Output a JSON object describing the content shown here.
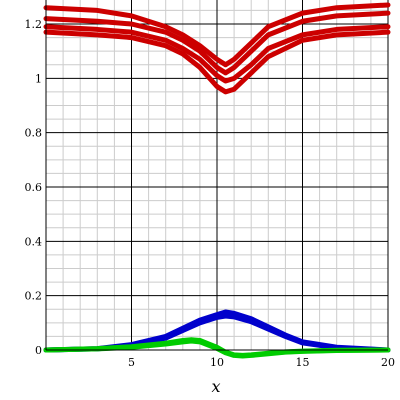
{
  "chart_data": {
    "type": "line",
    "title": "",
    "xlabel": "x",
    "ylabel": "",
    "xlim": [
      0,
      20
    ],
    "ylim": [
      0,
      1.3
    ],
    "xticks": [
      5,
      10,
      15,
      20
    ],
    "yticks": [
      0,
      0.2,
      0.4,
      0.6,
      0.8,
      1,
      1.2
    ],
    "xtick_labels": [
      "5",
      "10",
      "15",
      "20"
    ],
    "ytick_labels": [
      "0",
      "0.2",
      "0.4",
      "0.6",
      "0.8",
      "1",
      "1.2"
    ],
    "grid": true,
    "colors": {
      "red": "#cc0000",
      "blue": "#0000cc",
      "green": "#00cc00",
      "grid_major": "#000000",
      "grid_minor": "#cccccc"
    },
    "series": [
      {
        "group": "red",
        "x": [
          0,
          3,
          5,
          7,
          8,
          9,
          10,
          10.5,
          11,
          12,
          13,
          15,
          17,
          20
        ],
        "values": [
          1.17,
          1.16,
          1.15,
          1.12,
          1.09,
          1.04,
          0.97,
          0.95,
          0.96,
          1.02,
          1.08,
          1.14,
          1.16,
          1.17
        ]
      },
      {
        "group": "red",
        "x": [
          0,
          3,
          5,
          7,
          8,
          9,
          10,
          10.5,
          11,
          12,
          13,
          15,
          17,
          20
        ],
        "values": [
          1.19,
          1.18,
          1.17,
          1.14,
          1.11,
          1.07,
          1.01,
          0.99,
          1.0,
          1.05,
          1.11,
          1.16,
          1.18,
          1.19
        ]
      },
      {
        "group": "red",
        "x": [
          0,
          3,
          5,
          7,
          8,
          9,
          10,
          10.5,
          11,
          12,
          13,
          15,
          17,
          20
        ],
        "values": [
          1.22,
          1.21,
          1.2,
          1.17,
          1.14,
          1.1,
          1.04,
          1.02,
          1.04,
          1.1,
          1.16,
          1.21,
          1.23,
          1.24
        ]
      },
      {
        "group": "red",
        "x": [
          0,
          3,
          5,
          7,
          8,
          9,
          10,
          10.5,
          11,
          12,
          13,
          15,
          17,
          20
        ],
        "values": [
          1.26,
          1.25,
          1.23,
          1.19,
          1.16,
          1.12,
          1.07,
          1.05,
          1.07,
          1.13,
          1.19,
          1.24,
          1.26,
          1.27
        ]
      },
      {
        "group": "blue",
        "x": [
          0,
          3,
          5,
          7,
          8,
          9,
          10,
          10.5,
          11,
          12,
          13,
          14,
          15,
          17,
          20
        ],
        "values": [
          0.0,
          0.005,
          0.02,
          0.05,
          0.08,
          0.11,
          0.13,
          0.14,
          0.135,
          0.115,
          0.085,
          0.055,
          0.03,
          0.01,
          0.0
        ]
      },
      {
        "group": "blue",
        "x": [
          0,
          3,
          5,
          7,
          8,
          9,
          10,
          10.5,
          11,
          12,
          13,
          14,
          15,
          17,
          20
        ],
        "values": [
          0.0,
          0.004,
          0.016,
          0.044,
          0.072,
          0.1,
          0.12,
          0.125,
          0.122,
          0.104,
          0.077,
          0.05,
          0.026,
          0.008,
          0.0
        ]
      },
      {
        "group": "green",
        "x": [
          0,
          3,
          5,
          7,
          8,
          8.5,
          9,
          10,
          10.5,
          11,
          11.5,
          12,
          13,
          14,
          15,
          17,
          20
        ],
        "values": [
          0.0,
          0.005,
          0.012,
          0.025,
          0.035,
          0.038,
          0.035,
          0.01,
          -0.008,
          -0.018,
          -0.02,
          -0.018,
          -0.012,
          -0.007,
          -0.004,
          -0.001,
          0.0
        ]
      },
      {
        "group": "green",
        "x": [
          0,
          3,
          5,
          7,
          8,
          8.5,
          9,
          10,
          10.5,
          11,
          11.5,
          12,
          13,
          14,
          15,
          17,
          20
        ],
        "values": [
          0.0,
          0.004,
          0.01,
          0.022,
          0.03,
          0.033,
          0.03,
          0.006,
          -0.01,
          -0.02,
          -0.022,
          -0.02,
          -0.014,
          -0.008,
          -0.005,
          -0.002,
          0.0
        ]
      }
    ]
  }
}
